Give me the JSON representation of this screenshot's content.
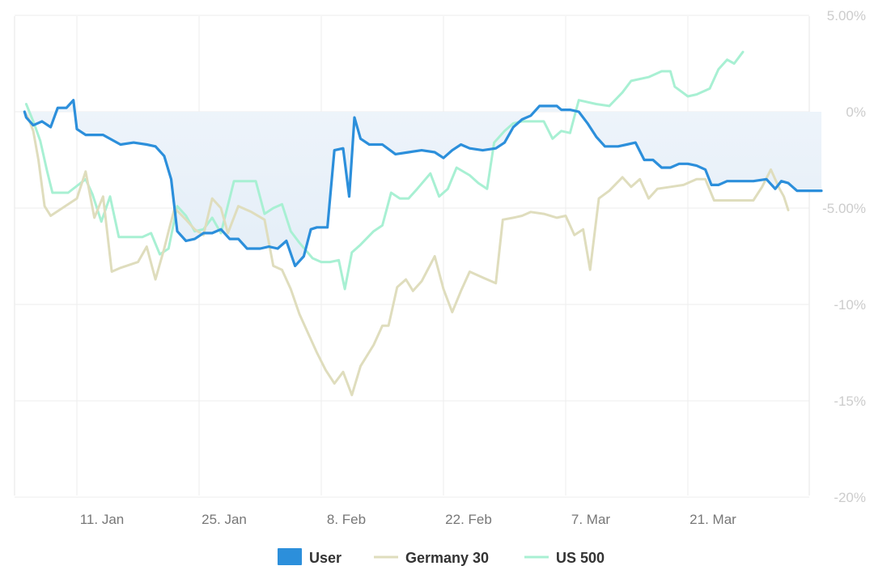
{
  "chart_data": {
    "type": "line",
    "x_label_dates": [
      "11. Jan",
      "25. Jan",
      "8. Feb",
      "22. Feb",
      "7. Mar",
      "21. Mar"
    ],
    "x_ticks": [
      {
        "label": "11. Jan",
        "day": 10
      },
      {
        "label": "25. Jan",
        "day": 24
      },
      {
        "label": "8. Feb",
        "day": 38
      },
      {
        "label": "22. Feb",
        "day": 52
      },
      {
        "label": "7. Mar",
        "day": 66
      },
      {
        "label": "21. Mar",
        "day": 80
      }
    ],
    "xlim": [
      3,
      93
    ],
    "y_ticks": [
      {
        "label": "5.00%",
        "value": 5
      },
      {
        "label": "0%",
        "value": 0
      },
      {
        "label": "-5.00%",
        "value": -5
      },
      {
        "label": "-10%",
        "value": -10
      },
      {
        "label": "-15%",
        "value": -15
      },
      {
        "label": "-20%",
        "value": -20
      }
    ],
    "ylim": [
      -20,
      5
    ],
    "grid": true,
    "legend_position": "bottom-center",
    "series": [
      {
        "name": "User",
        "color": "#2c8fdb",
        "area_fill": true,
        "points": [
          [
            4,
            0
          ],
          [
            4.2,
            -0.3
          ],
          [
            5,
            -0.7
          ],
          [
            6,
            -0.5
          ],
          [
            7,
            -0.8
          ],
          [
            7.8,
            0.2
          ],
          [
            8.8,
            0.2
          ],
          [
            9.6,
            0.6
          ],
          [
            10,
            -0.9
          ],
          [
            11,
            -1.2
          ],
          [
            13,
            -1.2
          ],
          [
            15,
            -1.7
          ],
          [
            16.5,
            -1.6
          ],
          [
            18,
            -1.7
          ],
          [
            19,
            -1.8
          ],
          [
            20,
            -2.3
          ],
          [
            20.8,
            -3.5
          ],
          [
            21.5,
            -6.2
          ],
          [
            22.5,
            -6.7
          ],
          [
            23.5,
            -6.6
          ],
          [
            24.5,
            -6.3
          ],
          [
            25.5,
            -6.3
          ],
          [
            26.5,
            -6.1
          ],
          [
            27.5,
            -6.6
          ],
          [
            28.5,
            -6.6
          ],
          [
            29.5,
            -7.1
          ],
          [
            31,
            -7.1
          ],
          [
            32,
            -7.0
          ],
          [
            33,
            -7.1
          ],
          [
            34,
            -6.7
          ],
          [
            35,
            -8.0
          ],
          [
            36,
            -7.5
          ],
          [
            36.8,
            -6.1
          ],
          [
            37.5,
            -6.0
          ],
          [
            38.7,
            -6.0
          ],
          [
            39.5,
            -2.0
          ],
          [
            40.5,
            -1.9
          ],
          [
            41.2,
            -4.4
          ],
          [
            41.8,
            -0.3
          ],
          [
            42.5,
            -1.4
          ],
          [
            43.5,
            -1.7
          ],
          [
            45,
            -1.7
          ],
          [
            46.5,
            -2.2
          ],
          [
            48,
            -2.1
          ],
          [
            49.5,
            -2.0
          ],
          [
            51,
            -2.1
          ],
          [
            52,
            -2.4
          ],
          [
            53,
            -2.0
          ],
          [
            54,
            -1.7
          ],
          [
            55,
            -1.9
          ],
          [
            56.5,
            -2.0
          ],
          [
            58,
            -1.9
          ],
          [
            59,
            -1.6
          ],
          [
            60,
            -0.8
          ],
          [
            61,
            -0.4
          ],
          [
            62,
            -0.2
          ],
          [
            63,
            0.3
          ],
          [
            64,
            0.3
          ],
          [
            65,
            0.3
          ],
          [
            65.5,
            0.1
          ],
          [
            66.5,
            0.1
          ],
          [
            67.5,
            0.0
          ],
          [
            68.5,
            -0.6
          ],
          [
            69.5,
            -1.3
          ],
          [
            70.5,
            -1.8
          ],
          [
            72,
            -1.8
          ],
          [
            73,
            -1.7
          ],
          [
            74,
            -1.6
          ],
          [
            75,
            -2.5
          ],
          [
            76,
            -2.5
          ],
          [
            77,
            -2.9
          ],
          [
            78,
            -2.9
          ],
          [
            79,
            -2.7
          ],
          [
            80,
            -2.7
          ],
          [
            81,
            -2.8
          ],
          [
            82,
            -3.0
          ],
          [
            82.7,
            -3.8
          ],
          [
            83.5,
            -3.8
          ],
          [
            84.5,
            -3.6
          ],
          [
            86,
            -3.6
          ],
          [
            87.5,
            -3.6
          ],
          [
            89,
            -3.5
          ],
          [
            90,
            -4.0
          ],
          [
            90.7,
            -3.6
          ],
          [
            91.5,
            -3.7
          ],
          [
            92.5,
            -4.1
          ],
          [
            94,
            -4.1
          ],
          [
            95.3,
            -4.1
          ]
        ]
      },
      {
        "name": "Germany 30",
        "color": "#dfddbd",
        "area_fill": false,
        "points": [
          [
            4,
            0
          ],
          [
            4.5,
            -0.4
          ],
          [
            5,
            -1.0
          ],
          [
            5.6,
            -2.5
          ],
          [
            6.3,
            -4.9
          ],
          [
            7,
            -5.4
          ],
          [
            10,
            -4.5
          ],
          [
            11,
            -3.1
          ],
          [
            12,
            -5.5
          ],
          [
            13,
            -4.4
          ],
          [
            14,
            -8.3
          ],
          [
            15,
            -8.1
          ],
          [
            17,
            -7.8
          ],
          [
            18,
            -7.0
          ],
          [
            19,
            -8.7
          ],
          [
            20,
            -7.1
          ],
          [
            20.5,
            -6.2
          ],
          [
            21.2,
            -5.0
          ],
          [
            22.5,
            -5.6
          ],
          [
            23.5,
            -6.1
          ],
          [
            24.5,
            -6.4
          ],
          [
            25.5,
            -4.5
          ],
          [
            26.5,
            -5.0
          ],
          [
            27.3,
            -6.3
          ],
          [
            28.5,
            -4.9
          ],
          [
            30,
            -5.2
          ],
          [
            31.5,
            -5.6
          ],
          [
            32.5,
            -8.0
          ],
          [
            33.5,
            -8.2
          ],
          [
            34.5,
            -9.2
          ],
          [
            35.5,
            -10.5
          ],
          [
            36.5,
            -11.5
          ],
          [
            37.5,
            -12.5
          ],
          [
            38.5,
            -13.4
          ],
          [
            39.5,
            -14.1
          ],
          [
            40.5,
            -13.5
          ],
          [
            41.5,
            -14.7
          ],
          [
            42.5,
            -13.2
          ],
          [
            44,
            -12.1
          ],
          [
            45,
            -11.1
          ],
          [
            45.7,
            -11.1
          ],
          [
            46.7,
            -9.1
          ],
          [
            47.7,
            -8.7
          ],
          [
            48.5,
            -9.3
          ],
          [
            49.5,
            -8.8
          ],
          [
            51,
            -7.5
          ],
          [
            52,
            -9.2
          ],
          [
            53,
            -10.4
          ],
          [
            54,
            -9.3
          ],
          [
            55,
            -8.3
          ],
          [
            56.5,
            -8.6
          ],
          [
            58,
            -8.9
          ],
          [
            58.8,
            -5.6
          ],
          [
            60,
            -5.5
          ],
          [
            61,
            -5.4
          ],
          [
            62,
            -5.2
          ],
          [
            63.5,
            -5.3
          ],
          [
            65,
            -5.5
          ],
          [
            66,
            -5.4
          ],
          [
            67,
            -6.4
          ],
          [
            68,
            -6.1
          ],
          [
            68.8,
            -8.2
          ],
          [
            69.8,
            -4.5
          ],
          [
            71,
            -4.1
          ],
          [
            72.5,
            -3.4
          ],
          [
            73.5,
            -3.9
          ],
          [
            74.5,
            -3.5
          ],
          [
            75.5,
            -4.5
          ],
          [
            76.5,
            -4.0
          ],
          [
            78,
            -3.9
          ],
          [
            79.5,
            -3.8
          ],
          [
            81,
            -3.5
          ],
          [
            82,
            -3.5
          ],
          [
            83,
            -4.6
          ],
          [
            85,
            -4.6
          ],
          [
            86.5,
            -4.6
          ],
          [
            87.5,
            -4.6
          ],
          [
            88.5,
            -3.9
          ],
          [
            89.5,
            -3.0
          ],
          [
            90.5,
            -4.0
          ],
          [
            91,
            -4.4
          ],
          [
            91.5,
            -5.1
          ]
        ]
      },
      {
        "name": "US 500",
        "color": "#a8f0d3",
        "area_fill": false,
        "points": [
          [
            4.2,
            0.4
          ],
          [
            5,
            -0.5
          ],
          [
            5.8,
            -1.5
          ],
          [
            6.6,
            -3.1
          ],
          [
            7.2,
            -4.2
          ],
          [
            9,
            -4.2
          ],
          [
            11,
            -3.5
          ],
          [
            11.8,
            -4.3
          ],
          [
            12.8,
            -5.7
          ],
          [
            13.8,
            -4.4
          ],
          [
            14.8,
            -6.5
          ],
          [
            17.5,
            -6.5
          ],
          [
            18.5,
            -6.3
          ],
          [
            19.5,
            -7.4
          ],
          [
            20.5,
            -7.1
          ],
          [
            21.5,
            -4.9
          ],
          [
            22.5,
            -5.4
          ],
          [
            23.5,
            -6.2
          ],
          [
            24.5,
            -6.1
          ],
          [
            25.5,
            -5.5
          ],
          [
            26.5,
            -6.3
          ],
          [
            28,
            -3.6
          ],
          [
            29.5,
            -3.6
          ],
          [
            30.5,
            -3.6
          ],
          [
            31.5,
            -5.3
          ],
          [
            32.5,
            -5.0
          ],
          [
            33.5,
            -4.8
          ],
          [
            34.5,
            -6.2
          ],
          [
            35.5,
            -6.8
          ],
          [
            37,
            -7.6
          ],
          [
            38,
            -7.8
          ],
          [
            39,
            -7.8
          ],
          [
            40,
            -7.7
          ],
          [
            40.7,
            -9.2
          ],
          [
            41.5,
            -7.3
          ],
          [
            42.5,
            -6.9
          ],
          [
            44,
            -6.2
          ],
          [
            45,
            -5.9
          ],
          [
            46,
            -4.2
          ],
          [
            47,
            -4.5
          ],
          [
            48,
            -4.5
          ],
          [
            49,
            -4.0
          ],
          [
            50.5,
            -3.2
          ],
          [
            51.5,
            -4.4
          ],
          [
            52.5,
            -4.0
          ],
          [
            53.5,
            -2.9
          ],
          [
            55,
            -3.3
          ],
          [
            56,
            -3.7
          ],
          [
            57,
            -4.0
          ],
          [
            57.8,
            -1.6
          ],
          [
            59,
            -1.0
          ],
          [
            60,
            -0.6
          ],
          [
            61,
            -0.5
          ],
          [
            62.5,
            -0.5
          ],
          [
            63.5,
            -0.5
          ],
          [
            64.5,
            -1.4
          ],
          [
            65.5,
            -1.0
          ],
          [
            66.5,
            -1.1
          ],
          [
            67.5,
            0.6
          ],
          [
            69.5,
            0.4
          ],
          [
            71,
            0.3
          ],
          [
            72.5,
            1.0
          ],
          [
            73.5,
            1.6
          ],
          [
            75.5,
            1.8
          ],
          [
            77,
            2.1
          ],
          [
            78,
            2.1
          ],
          [
            78.5,
            1.3
          ],
          [
            80,
            0.8
          ],
          [
            81,
            0.9
          ],
          [
            82.5,
            1.2
          ],
          [
            83.5,
            2.2
          ],
          [
            84.5,
            2.7
          ],
          [
            85.3,
            2.5
          ],
          [
            86.3,
            3.1
          ]
        ]
      }
    ]
  }
}
